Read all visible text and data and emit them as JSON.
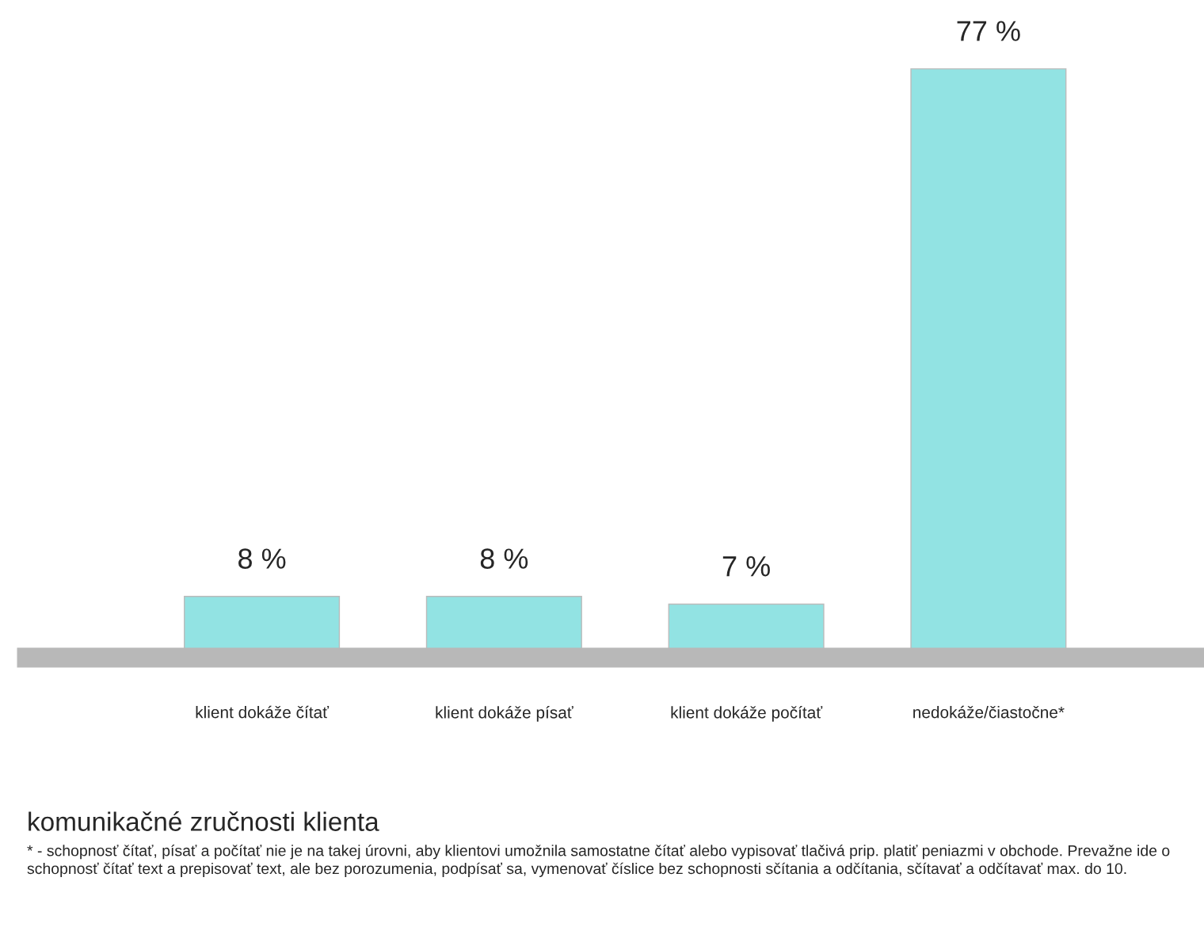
{
  "chart_data": {
    "type": "bar",
    "categories": [
      "klient dokáže čítať",
      "klient dokáže písať",
      "klient dokáže počítať",
      "nedokáže/čiastočne*"
    ],
    "values": [
      8,
      8,
      7,
      77
    ],
    "value_labels": [
      "8 %",
      "8 %",
      "7 %",
      "77 %"
    ],
    "color": "#92e3e3",
    "xlabel": "komunikačné zručnosti klienta",
    "annotations": [
      "* - schopnosť čítať, písať a počítať nie je na takej úrovni, aby klientovi umožnila samostatne čítať alebo vypisovať tlačivá prip. platiť peniazmi v obchode. Prevažne ide o schopnosť čítať text a prepisovať text, ale bez porozumenia, podpísať sa, vymenovať číslice bez schopnosti sčítania a odčítania, sčítavať a odčítavať max. do 10."
    ],
    "grid": false,
    "legend": false
  }
}
